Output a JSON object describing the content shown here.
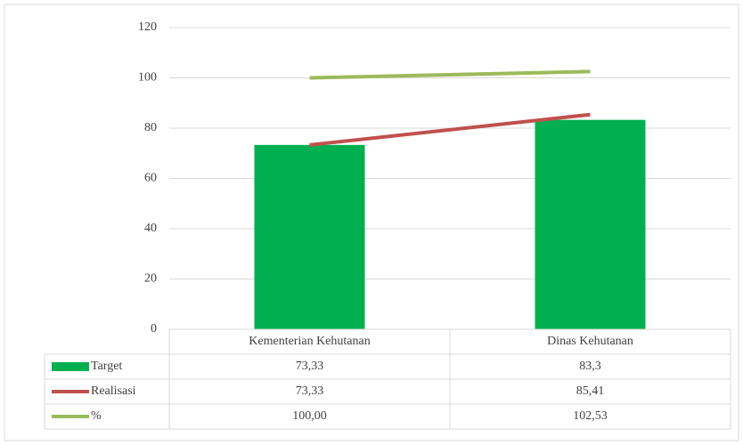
{
  "chart_data": {
    "type": "bar",
    "categories": [
      "Kementerian Kehutanan",
      "Dinas Kehutanan"
    ],
    "series": [
      {
        "name": "Target",
        "type": "bar",
        "color": "#00b050",
        "values": [
          73.33,
          83.3
        ],
        "value_labels": [
          "73,33",
          "83,3"
        ]
      },
      {
        "name": "Realisasi",
        "type": "line",
        "color": "#c0504d",
        "values": [
          73.33,
          85.41
        ],
        "value_labels": [
          "73,33",
          "85,41"
        ]
      },
      {
        "name": "%",
        "type": "line",
        "color": "#9bbb59",
        "values": [
          100,
          102.53
        ],
        "value_labels": [
          "100,00",
          "102,53"
        ]
      }
    ],
    "ylim": [
      0,
      120
    ],
    "yticks": [
      0,
      20,
      40,
      60,
      80,
      100,
      120
    ],
    "grid": true
  }
}
